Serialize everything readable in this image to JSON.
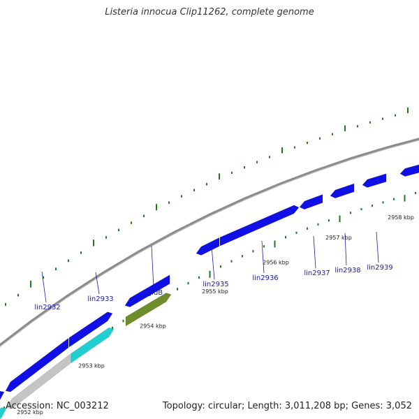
{
  "title": "Listeria innocua Clip11262, complete genome",
  "accession": "Accession: NC_003212",
  "summary": "Topology: circular; Length: 3,011,208 bp; Genes: 3,052",
  "colors": {
    "backbone": "#8c8c8c",
    "tick": "#1f7a1f",
    "blue": "#1010e6",
    "cyan": "#1fd0d0",
    "grey": "#c4c4c4",
    "olive": "#6e8c2a",
    "label": "#1a1aa8"
  },
  "scale_labels": [
    "2952 kbp",
    "2953 kbp",
    "2954 kbp",
    "2955 kbp",
    "2956 kbp",
    "2957 kbp",
    "2958 kbp"
  ],
  "gene_labels": [
    "lin2932",
    "lin2933",
    "gidB",
    "lin2935",
    "lin2936",
    "lin2937",
    "lin2938",
    "lin2939"
  ]
}
